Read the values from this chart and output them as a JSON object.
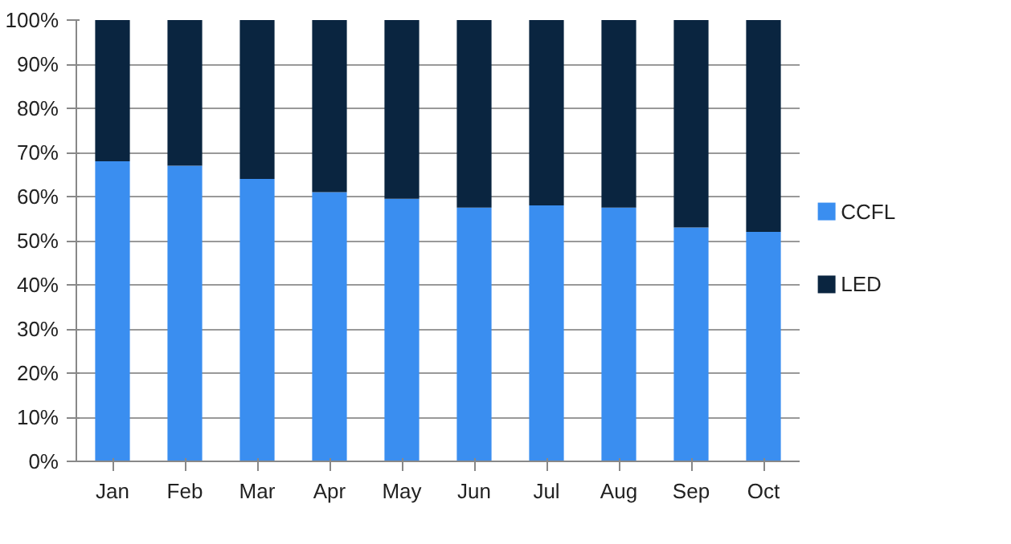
{
  "chart_data": {
    "type": "bar",
    "stacked": true,
    "categories": [
      "Jan",
      "Feb",
      "Mar",
      "Apr",
      "May",
      "Jun",
      "Jul",
      "Aug",
      "Sep",
      "Oct"
    ],
    "series": [
      {
        "name": "CCFL",
        "color": "#3a8ef0",
        "values": [
          68,
          67,
          64,
          61,
          59.5,
          57.5,
          58,
          57.5,
          53,
          52
        ]
      },
      {
        "name": "LED",
        "color": "#0a2540",
        "values": [
          32,
          33,
          36,
          39,
          40.5,
          42.5,
          42,
          42.5,
          47,
          48
        ]
      }
    ],
    "ylim": [
      0,
      100
    ],
    "yticks": [
      {
        "value": 0,
        "label": "0%"
      },
      {
        "value": 10,
        "label": "10%"
      },
      {
        "value": 20,
        "label": "20%"
      },
      {
        "value": 30,
        "label": "30%"
      },
      {
        "value": 40,
        "label": "40%"
      },
      {
        "value": 50,
        "label": "50%"
      },
      {
        "value": 60,
        "label": "60%"
      },
      {
        "value": 70,
        "label": "70%"
      },
      {
        "value": 80,
        "label": "80%"
      },
      {
        "value": 90,
        "label": "90%"
      },
      {
        "value": 100,
        "label": "100%"
      }
    ],
    "grid": "y",
    "legend": "right"
  }
}
